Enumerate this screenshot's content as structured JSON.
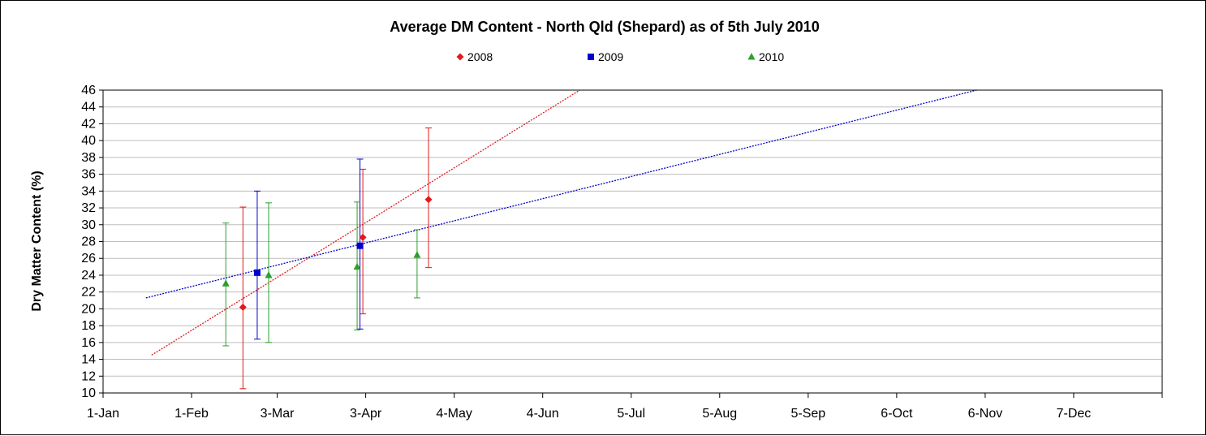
{
  "chart_data": {
    "type": "scatter",
    "title": "Average DM Content - North Qld (Shepard) as of 5th July 2010",
    "ylabel": "Dry Matter Content (%)",
    "xlabel": "",
    "ylim": [
      10,
      46
    ],
    "yticks": [
      10,
      12,
      14,
      16,
      18,
      20,
      22,
      24,
      26,
      28,
      30,
      32,
      34,
      36,
      38,
      40,
      42,
      44,
      46
    ],
    "xticks": [
      {
        "day": 1,
        "label": "1-Jan"
      },
      {
        "day": 32,
        "label": "1-Feb"
      },
      {
        "day": 62,
        "label": "3-Mar"
      },
      {
        "day": 93,
        "label": "3-Apr"
      },
      {
        "day": 124,
        "label": "4-May"
      },
      {
        "day": 155,
        "label": "4-Jun"
      },
      {
        "day": 186,
        "label": "5-Jul"
      },
      {
        "day": 217,
        "label": "5-Aug"
      },
      {
        "day": 248,
        "label": "5-Sep"
      },
      {
        "day": 279,
        "label": "6-Oct"
      },
      {
        "day": 310,
        "label": "6-Nov"
      },
      {
        "day": 341,
        "label": "7-Dec"
      }
    ],
    "xlim": [
      1,
      372
    ],
    "grid": "horizontal",
    "legend_position": "top",
    "series": [
      {
        "name": "2008",
        "color": "#e31a1c",
        "marker": "diamond",
        "points": [
          {
            "day": 50,
            "y": 20.2,
            "low": 10.5,
            "high": 32.1
          },
          {
            "day": 92,
            "y": 28.5,
            "low": 19.4,
            "high": 36.6
          },
          {
            "day": 115,
            "y": 33.0,
            "low": 24.9,
            "high": 41.5
          }
        ],
        "trendline": {
          "from": [
            18,
            14.5
          ],
          "to": [
            168,
            46
          ]
        }
      },
      {
        "name": "2009",
        "color": "#0000cc",
        "marker": "square",
        "points": [
          {
            "day": 55,
            "y": 24.3,
            "low": 16.4,
            "high": 34.0
          },
          {
            "day": 91,
            "y": 27.5,
            "low": 17.6,
            "high": 37.8
          }
        ],
        "trendline": {
          "from": [
            16,
            21.3
          ],
          "to": [
            307,
            46
          ]
        }
      },
      {
        "name": "2010",
        "color": "#2ca02c",
        "marker": "triangle",
        "points": [
          {
            "day": 44,
            "y": 23.0,
            "low": 15.6,
            "high": 30.2
          },
          {
            "day": 59,
            "y": 24.0,
            "low": 16.0,
            "high": 32.6
          },
          {
            "day": 90,
            "y": 25.0,
            "low": 17.5,
            "high": 32.7
          },
          {
            "day": 111,
            "y": 26.4,
            "low": 21.3,
            "high": 29.4
          }
        ]
      }
    ]
  }
}
